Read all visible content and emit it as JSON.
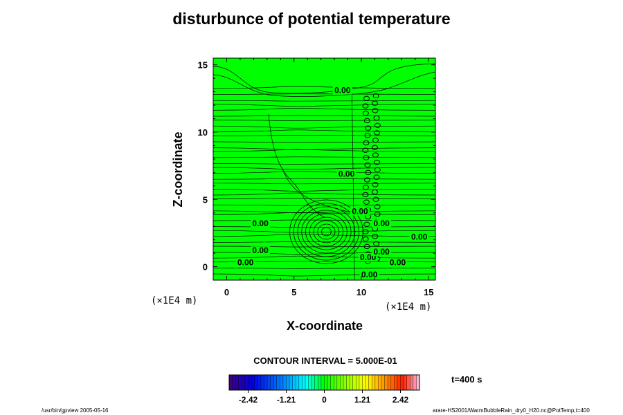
{
  "chart_data": {
    "type": "heatmap",
    "title": "disturbunce of potential temperature",
    "xlabel": "X-coordinate",
    "ylabel": "Z-coordinate",
    "x_unit": "(×1E4 m)",
    "y_unit": "(×1E4 m)",
    "xlim": [
      -1,
      15.5
    ],
    "ylim": [
      -1,
      15.5
    ],
    "x_ticks": [
      0,
      5,
      10,
      15
    ],
    "y_ticks": [
      0,
      5,
      10,
      15
    ],
    "contour_labels": [
      {
        "text": "0.00",
        "x": 8.6,
        "z": 13.0
      },
      {
        "text": "0.00",
        "x": 8.9,
        "z": 6.8
      },
      {
        "text": "0.00",
        "x": 9.9,
        "z": 4.0
      },
      {
        "text": "0.00",
        "x": 2.5,
        "z": 3.1
      },
      {
        "text": "0.00",
        "x": 11.5,
        "z": 3.1
      },
      {
        "text": "0.00",
        "x": 14.3,
        "z": 2.1
      },
      {
        "text": "0.00",
        "x": 2.5,
        "z": 1.1
      },
      {
        "text": "0.00",
        "x": 10.5,
        "z": 0.6
      },
      {
        "text": "0.00",
        "x": 11.5,
        "z": 1.0
      },
      {
        "text": "0.00",
        "x": 1.4,
        "z": 0.2
      },
      {
        "text": "0.00",
        "x": 12.7,
        "z": 0.2
      },
      {
        "text": "0.00",
        "x": 10.6,
        "z": -0.7
      }
    ],
    "contour_interval": "CONTOUR INTERVAL = 5.000E-01",
    "colorbar": {
      "ticks": [
        "-2.42",
        "-1.21",
        "0",
        "1.21",
        "2.42"
      ],
      "range": [
        -3.025,
        3.025
      ],
      "colormap": "rainbow"
    },
    "time_label": "t=400 s",
    "field_color": "#00ff00"
  },
  "footer": {
    "left": "/usr/bin/gpview 2005-05-16",
    "right": "arare-HS2001/WarmBubbleRain_dry0_H20.nc@PotTemp,t=400"
  }
}
